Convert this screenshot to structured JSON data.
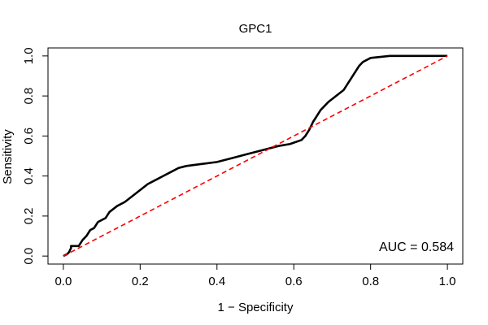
{
  "chart_data": {
    "type": "line",
    "title": "GPC1",
    "xlabel": "1 − Specificity",
    "ylabel": "Sensitivity",
    "xlim": [
      -0.04,
      1.04
    ],
    "ylim": [
      -0.04,
      1.04
    ],
    "x_ticks": [
      0.0,
      0.2,
      0.4,
      0.6,
      0.8,
      1.0
    ],
    "x_tick_labels": [
      "0.0",
      "0.2",
      "0.4",
      "0.6",
      "0.8",
      "1.0"
    ],
    "y_ticks": [
      0.0,
      0.2,
      0.4,
      0.6,
      0.8,
      1.0
    ],
    "y_tick_labels": [
      "0.0",
      "0.2",
      "0.4",
      "0.6",
      "0.8",
      "1.0"
    ],
    "grid": false,
    "annotation": "AUC = 0.584",
    "series": [
      {
        "color": "#000000",
        "style": "solid",
        "step": true,
        "points": [
          [
            0.0,
            0.0
          ],
          [
            0.01,
            0.01
          ],
          [
            0.015,
            0.02
          ],
          [
            0.02,
            0.04
          ],
          [
            0.02,
            0.05
          ],
          [
            0.04,
            0.05
          ],
          [
            0.05,
            0.08
          ],
          [
            0.06,
            0.1
          ],
          [
            0.07,
            0.13
          ],
          [
            0.08,
            0.14
          ],
          [
            0.09,
            0.17
          ],
          [
            0.11,
            0.19
          ],
          [
            0.12,
            0.22
          ],
          [
            0.14,
            0.25
          ],
          [
            0.16,
            0.27
          ],
          [
            0.18,
            0.3
          ],
          [
            0.2,
            0.33
          ],
          [
            0.22,
            0.36
          ],
          [
            0.24,
            0.38
          ],
          [
            0.26,
            0.4
          ],
          [
            0.28,
            0.42
          ],
          [
            0.3,
            0.44
          ],
          [
            0.32,
            0.45
          ],
          [
            0.36,
            0.46
          ],
          [
            0.4,
            0.47
          ],
          [
            0.44,
            0.49
          ],
          [
            0.48,
            0.51
          ],
          [
            0.52,
            0.53
          ],
          [
            0.56,
            0.55
          ],
          [
            0.59,
            0.56
          ],
          [
            0.62,
            0.58
          ],
          [
            0.63,
            0.6
          ],
          [
            0.64,
            0.63
          ],
          [
            0.65,
            0.67
          ],
          [
            0.66,
            0.7
          ],
          [
            0.67,
            0.73
          ],
          [
            0.69,
            0.77
          ],
          [
            0.71,
            0.8
          ],
          [
            0.73,
            0.83
          ],
          [
            0.74,
            0.86
          ],
          [
            0.75,
            0.89
          ],
          [
            0.76,
            0.92
          ],
          [
            0.77,
            0.95
          ],
          [
            0.78,
            0.97
          ],
          [
            0.8,
            0.99
          ],
          [
            0.85,
            1.0
          ],
          [
            1.0,
            1.0
          ]
        ]
      },
      {
        "color": "#ff0000",
        "style": "dashed",
        "points": [
          [
            0.0,
            0.0
          ],
          [
            1.0,
            1.0
          ]
        ]
      }
    ]
  }
}
